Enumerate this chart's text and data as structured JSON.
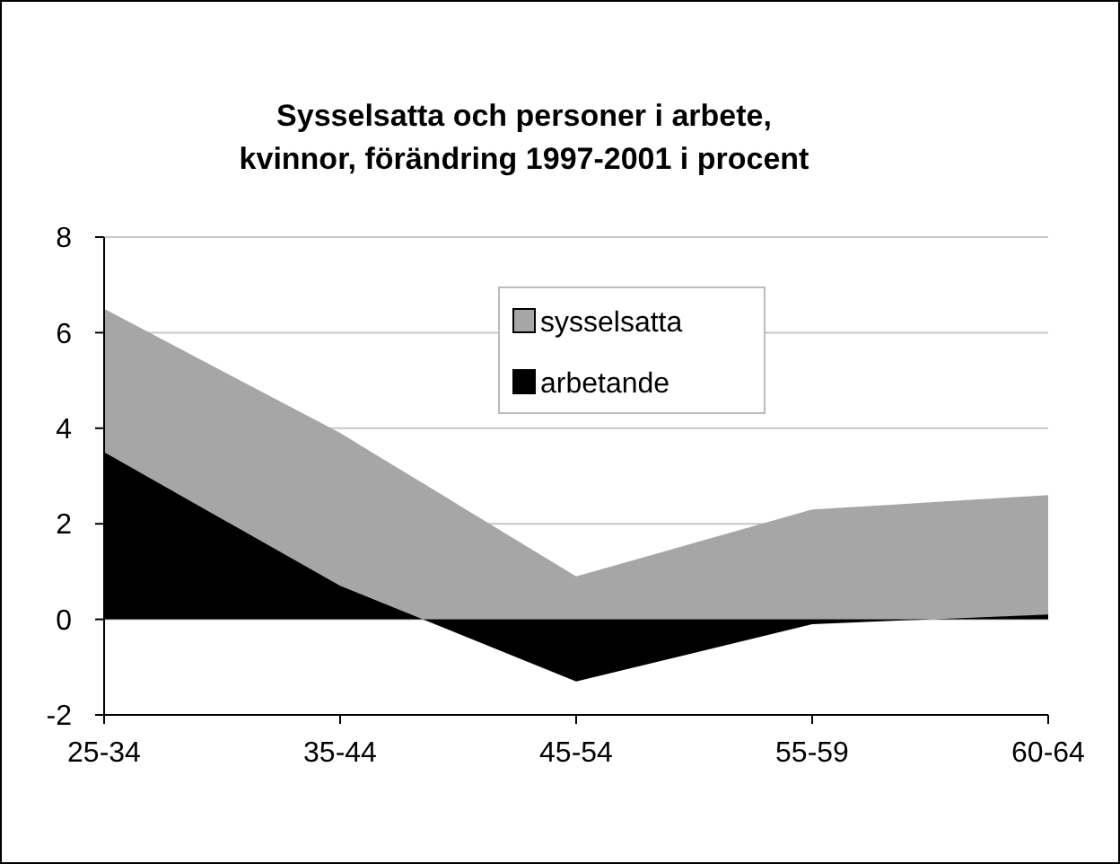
{
  "chart_data": {
    "type": "area",
    "title": "Sysselsatta och personer i arbete,\nkvinnor, förändring 1997-2001 i procent",
    "categories": [
      "25-34",
      "35-44",
      "45-54",
      "55-59",
      "60-64"
    ],
    "series": [
      {
        "name": "sysselsatta",
        "color": "#a6a6a6",
        "values": [
          6.5,
          3.9,
          0.9,
          2.3,
          2.6
        ]
      },
      {
        "name": "arbetande",
        "color": "#000000",
        "values": [
          3.5,
          0.7,
          -1.3,
          -0.1,
          0.1
        ]
      }
    ],
    "ylim": [
      -2,
      8
    ],
    "yticks": [
      -2,
      0,
      2,
      4,
      6,
      8
    ],
    "grid": "y",
    "legend": "top"
  }
}
